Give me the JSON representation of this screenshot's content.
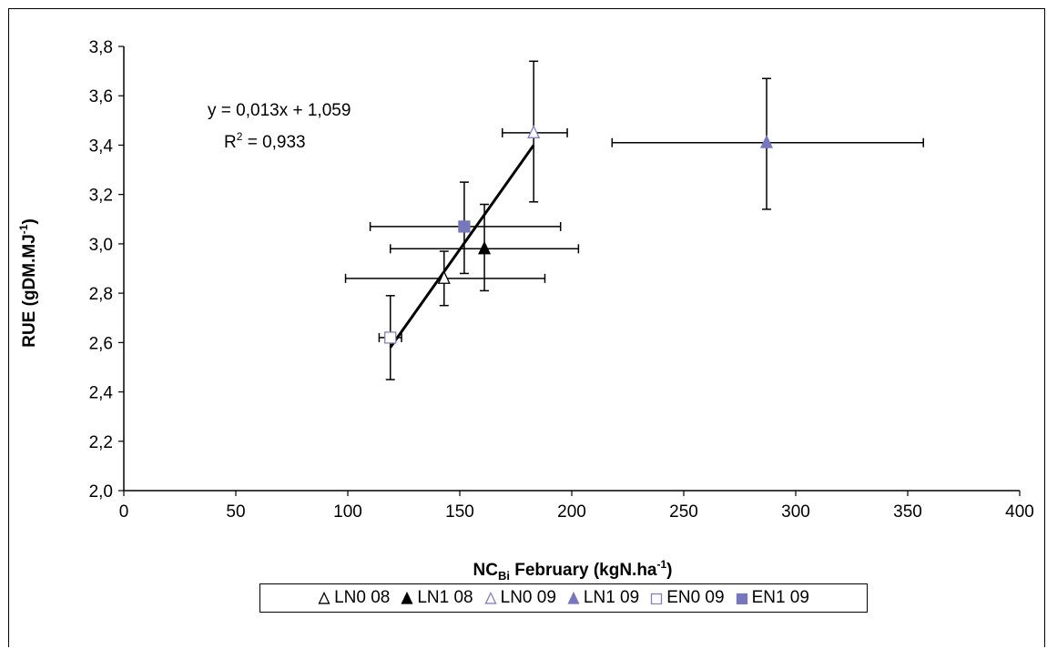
{
  "chart_data": {
    "type": "scatter",
    "xlabel_main": "NC",
    "xlabel_sub": "Bi",
    "xlabel_rest": " February (kgN.ha",
    "xlabel_sup": "-1",
    "xlabel_end": ")",
    "ylabel_main": "RUE (gDM.MJ",
    "ylabel_sup": "-1",
    "ylabel_end": ")",
    "xlim": [
      0,
      400
    ],
    "ylim": [
      2.0,
      3.8
    ],
    "x_ticks": [
      "0",
      "50",
      "100",
      "150",
      "200",
      "250",
      "300",
      "350",
      "400"
    ],
    "y_ticks": [
      "2,0",
      "2,2",
      "2,4",
      "2,6",
      "2,8",
      "3,0",
      "3,2",
      "3,4",
      "3,6",
      "3,8"
    ],
    "grid": false,
    "legend_position": "bottom",
    "series": [
      {
        "name": "LN0 08",
        "marker": "triangle",
        "filled": false,
        "color": "#000000",
        "x": 143,
        "y": 2.86,
        "x_err": [
          99,
          188
        ],
        "y_err": [
          2.75,
          2.97
        ]
      },
      {
        "name": "LN1 08",
        "marker": "triangle",
        "filled": true,
        "color": "#000000",
        "x": 161,
        "y": 2.98,
        "x_err": [
          119,
          203
        ],
        "y_err": [
          2.81,
          3.16
        ]
      },
      {
        "name": "LN0 09",
        "marker": "triangle",
        "filled": false,
        "color": "#8080c0",
        "x": 183,
        "y": 3.45,
        "x_err": [
          169,
          198
        ],
        "y_err": [
          3.17,
          3.74
        ]
      },
      {
        "name": "LN1 09",
        "marker": "triangle",
        "filled": true,
        "color": "#7777bb",
        "x": 287,
        "y": 3.41,
        "x_err": [
          218,
          357
        ],
        "y_err": [
          3.14,
          3.67
        ]
      },
      {
        "name": "EN0 09",
        "marker": "square",
        "filled": false,
        "color": "#8080c0",
        "x": 119,
        "y": 2.62,
        "x_err": [
          114,
          124
        ],
        "y_err": [
          2.45,
          2.79
        ]
      },
      {
        "name": "EN1 09",
        "marker": "square",
        "filled": true,
        "color": "#7777bb",
        "x": 152,
        "y": 3.07,
        "x_err": [
          110,
          195
        ],
        "y_err": [
          2.88,
          3.25
        ]
      }
    ],
    "trendline": {
      "slope": 0.013,
      "intercept": 1.059,
      "x_range": [
        119,
        183
      ],
      "y_start": 2.58,
      "y_end": 3.4
    },
    "annotations": {
      "equation": "y = 0,013x + 1,059",
      "r2_prefix": "R",
      "r2_sup": "2",
      "r2_value": " = 0,933"
    }
  }
}
